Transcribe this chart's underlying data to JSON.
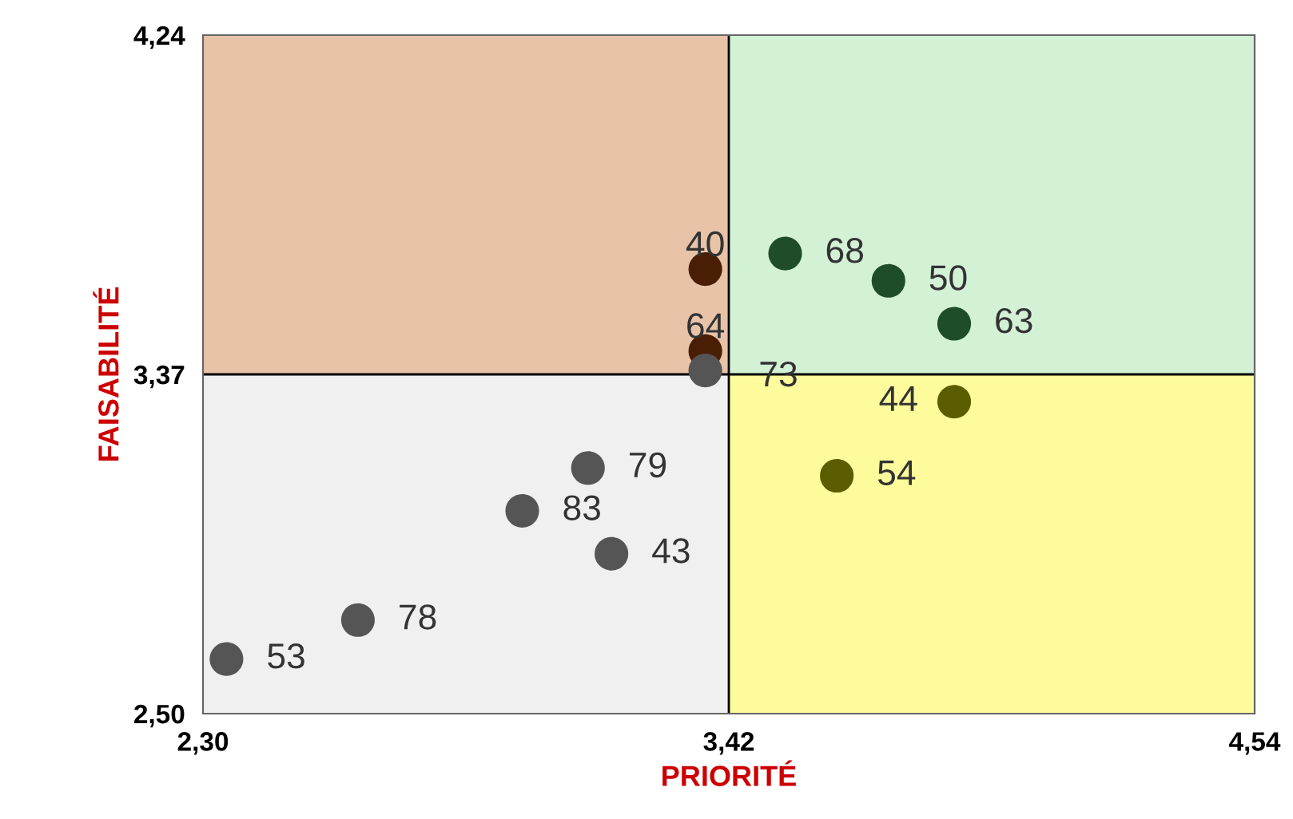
{
  "chart_data": {
    "type": "scatter",
    "xlabel": "PRIORITÉ",
    "ylabel": "FAISABILITÉ",
    "x": [
      3.37,
      3.54,
      3.76,
      3.9,
      3.37,
      3.37,
      3.9,
      3.65,
      3.12,
      2.98,
      3.17,
      2.63,
      2.35
    ],
    "values": [
      3.64,
      3.68,
      3.61,
      3.5,
      3.43,
      3.38,
      3.3,
      3.11,
      3.13,
      3.02,
      2.91,
      2.74,
      2.64
    ],
    "colors": [
      "#4a1e05",
      "#1f4d2b",
      "#1f4d2b",
      "#1f4d2b",
      "#4a1e05",
      "#555555",
      "#5c5c00",
      "#5c5c00",
      "#555555",
      "#555555",
      "#555555",
      "#555555",
      "#555555"
    ],
    "annotations": [
      {
        "text": "40",
        "x": 3.37,
        "y": 3.64
      },
      {
        "text": "68",
        "x": 3.54,
        "y": 3.68
      },
      {
        "text": "50",
        "x": 3.76,
        "y": 3.61
      },
      {
        "text": "63",
        "x": 3.9,
        "y": 3.5
      },
      {
        "text": "64",
        "x": 3.37,
        "y": 3.43
      },
      {
        "text": "73",
        "x": 3.37,
        "y": 3.38
      },
      {
        "text": "44",
        "x": 3.9,
        "y": 3.3
      },
      {
        "text": "54",
        "x": 3.65,
        "y": 3.11
      },
      {
        "text": "79",
        "x": 3.12,
        "y": 3.13
      },
      {
        "text": "83",
        "x": 2.98,
        "y": 3.02
      },
      {
        "text": "43",
        "x": 3.17,
        "y": 2.91
      },
      {
        "text": "78",
        "x": 2.63,
        "y": 2.74
      },
      {
        "text": "53",
        "x": 2.35,
        "y": 2.64
      }
    ],
    "marker": "circle",
    "xlim": [
      2.3,
      4.54
    ],
    "ylim": [
      2.5,
      4.24
    ],
    "xticks": [
      {
        "value": 2.3,
        "label": "2,30"
      },
      {
        "value": 3.42,
        "label": "3,42"
      },
      {
        "value": 4.54,
        "label": "4,54"
      }
    ],
    "yticks": [
      {
        "value": 2.5,
        "label": "2,50"
      },
      {
        "value": 3.37,
        "label": "3,37"
      },
      {
        "value": 4.24,
        "label": "4,24"
      }
    ],
    "ref_lines": [
      {
        "axis": "x",
        "value": 3.42,
        "color": "#000000"
      },
      {
        "axis": "y",
        "value": 3.37,
        "color": "#000000"
      }
    ],
    "grid": false
  }
}
